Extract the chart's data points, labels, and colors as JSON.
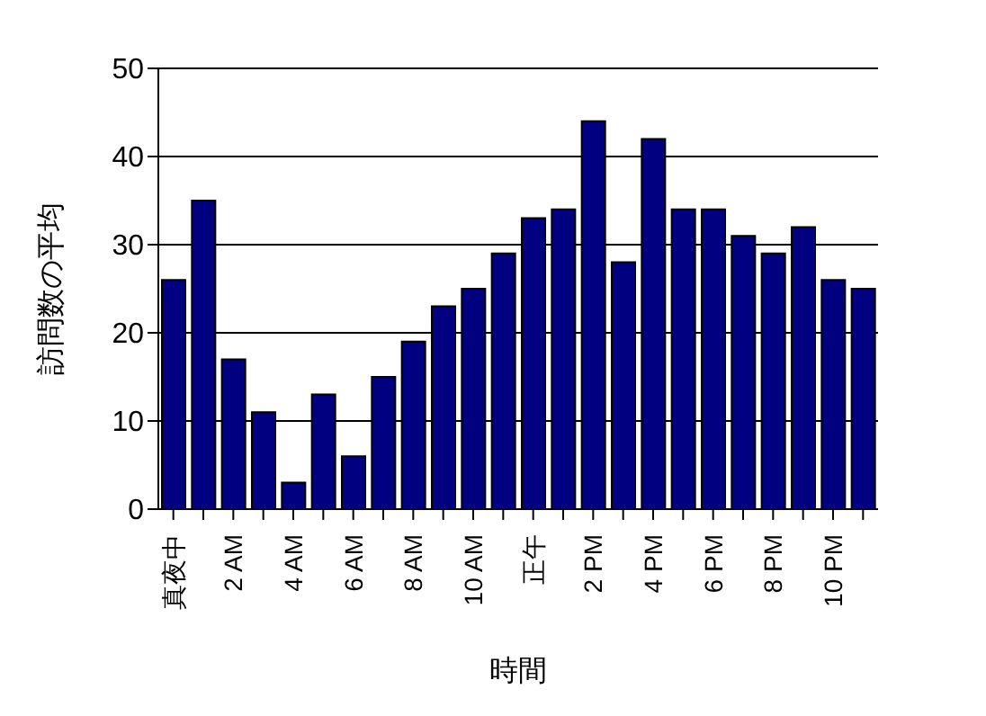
{
  "chart_data": {
    "type": "bar",
    "xlabel": "時間",
    "ylabel": "訪問数の平均",
    "categories": [
      "真夜中",
      null,
      "2 AM",
      null,
      "4 AM",
      null,
      "6 AM",
      null,
      "8 AM",
      null,
      "10 AM",
      null,
      "正午",
      null,
      "2 PM",
      null,
      "4 PM",
      null,
      "6 PM",
      null,
      "8 PM",
      null,
      "10 PM",
      null
    ],
    "values": [
      26,
      35,
      17,
      11,
      3,
      13,
      6,
      15,
      19,
      23,
      25,
      29,
      33,
      34,
      44,
      28,
      42,
      34,
      34,
      31,
      29,
      32,
      26,
      25
    ],
    "color": "#000080",
    "ylim": [
      0,
      50
    ],
    "yticks": [
      0,
      10,
      20,
      30,
      40,
      50
    ],
    "grid": "y"
  }
}
